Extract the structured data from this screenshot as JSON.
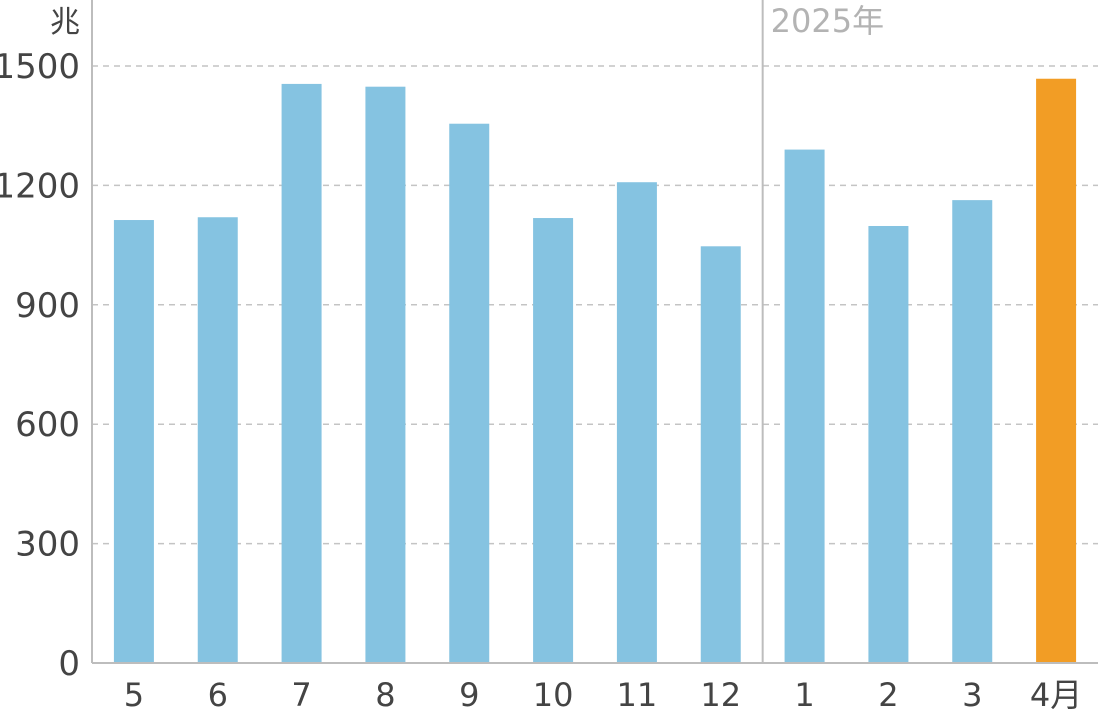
{
  "chart_data": {
    "type": "bar",
    "y_unit": "兆",
    "ylim": [
      0,
      1500
    ],
    "y_ticks": [
      "0",
      "300",
      "600",
      "900",
      "1200",
      "1500"
    ],
    "categories": [
      "5",
      "6",
      "7",
      "8",
      "9",
      "10",
      "11",
      "12",
      "1",
      "2",
      "3",
      "4月"
    ],
    "values": [
      1113,
      1120,
      1455,
      1448,
      1355,
      1118,
      1208,
      1047,
      1290,
      1098,
      1163,
      1468
    ],
    "year_marker": {
      "label": "2025年",
      "before_category": "1"
    },
    "highlight_category": "4月",
    "grid": true,
    "colors": {
      "bar": "#85c3e1",
      "highlight": "#f29d25",
      "grid": "#c4c4c4",
      "axis": "#bdbdbd",
      "year_label": "#b3b3b3",
      "text": "#444444"
    }
  }
}
